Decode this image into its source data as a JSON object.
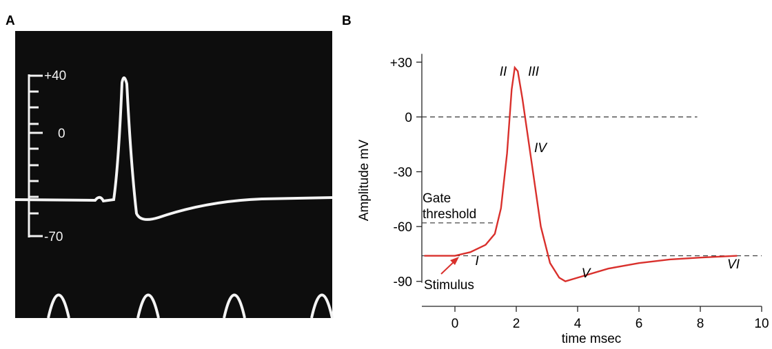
{
  "panel_a": {
    "label": "A",
    "scale_labels": [
      "+40",
      "0",
      "-70"
    ]
  },
  "chart_data": {
    "type": "line",
    "panel": "B",
    "x": [
      -1,
      0,
      0.5,
      1,
      1.3,
      1.5,
      1.7,
      1.85,
      1.95,
      2.05,
      2.2,
      2.5,
      2.8,
      3.1,
      3.4,
      3.6,
      4,
      5,
      6,
      7,
      8,
      9.2
    ],
    "series": [
      {
        "color": "#d9302c",
        "values": [
          -76,
          -76,
          -74,
          -70,
          -64,
          -50,
          -20,
          15,
          27,
          25,
          10,
          -25,
          -60,
          -80,
          -88,
          -90,
          -88,
          -83,
          -80,
          -78,
          -77,
          -76
        ]
      }
    ],
    "xlim": [
      -1,
      10
    ],
    "ylim": [
      -95,
      35
    ],
    "xticks": [
      0,
      2,
      4,
      6,
      8,
      10
    ],
    "yticks": [
      {
        "value": 30,
        "label": "+30"
      },
      0,
      -30,
      -60,
      -90
    ],
    "y_label": "Amplitude mV",
    "x_label": "time msec",
    "reference_lines": [
      {
        "y": 0,
        "x_end": 7.9
      },
      {
        "y": -58,
        "x_end": 1.3
      },
      {
        "y": -76,
        "x_end": 10
      }
    ],
    "annotations": [
      "II",
      "III",
      "IV",
      "V",
      "VI",
      "I",
      "Gate",
      "threshold",
      "Stimulus"
    ]
  }
}
